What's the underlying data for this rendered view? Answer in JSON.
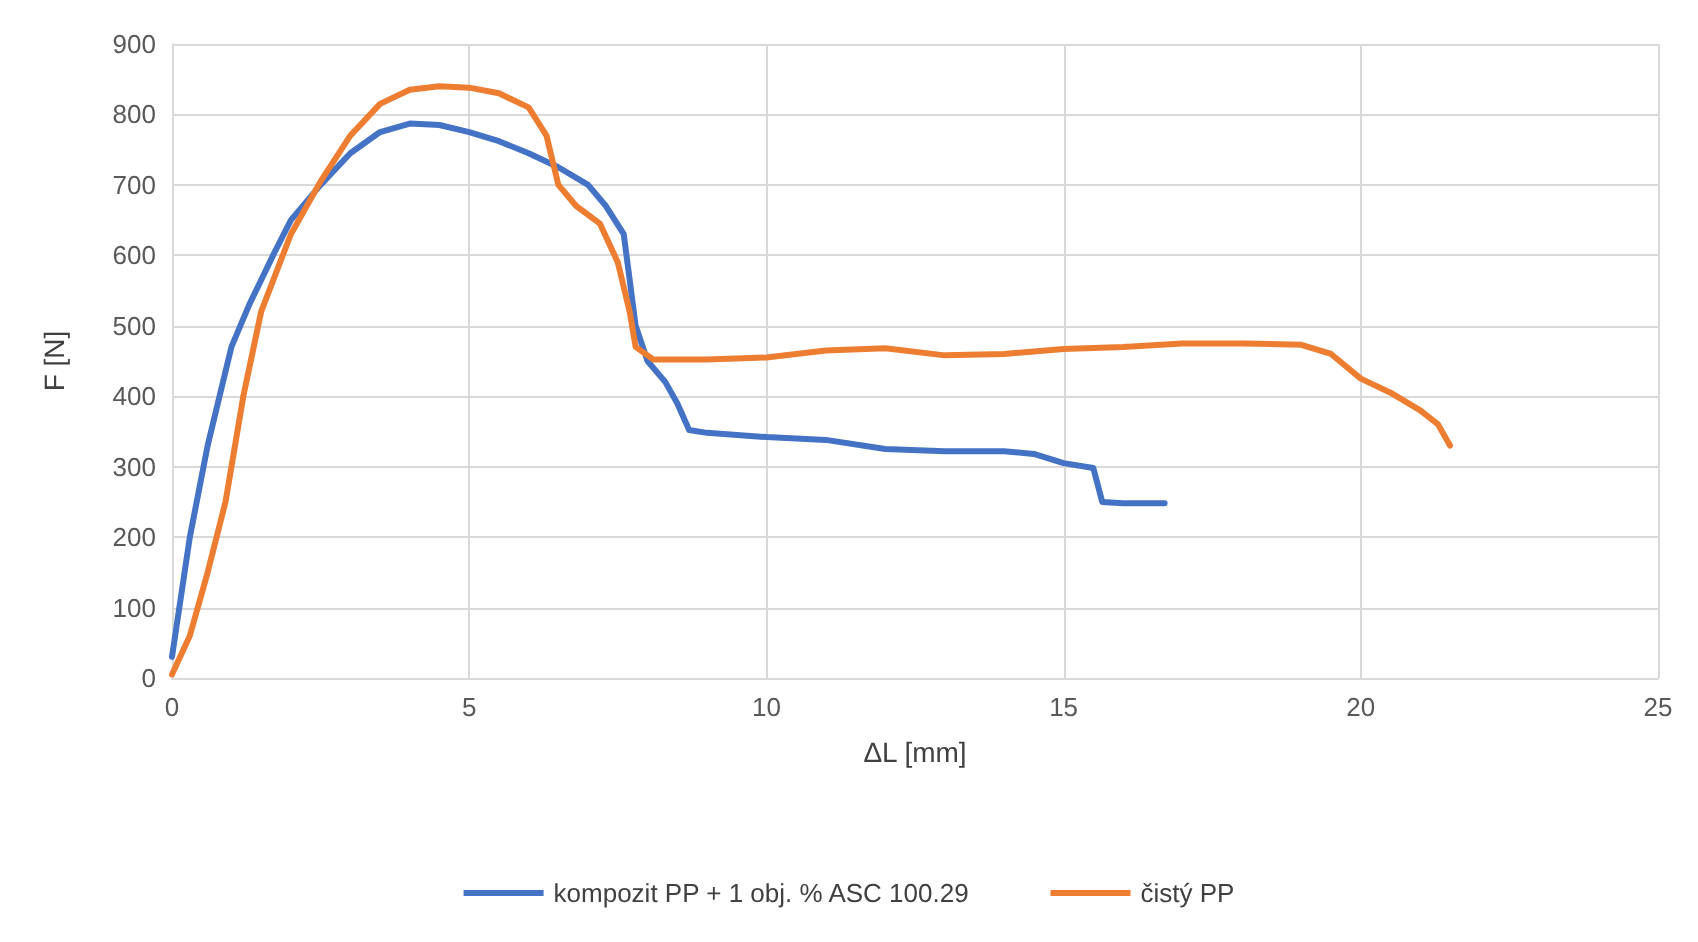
{
  "chart_data": {
    "type": "line",
    "xlabel": "ΔL [mm]",
    "ylabel": "F [N]",
    "xlim": [
      0,
      25
    ],
    "xticks": [
      0,
      5,
      10,
      15,
      20,
      25
    ],
    "ylim": [
      0,
      900
    ],
    "yticks": [
      0,
      100,
      200,
      300,
      400,
      500,
      600,
      700,
      800,
      900
    ],
    "grid": true,
    "legend": "bottom",
    "marker": "none",
    "line_style": "solid",
    "series": [
      {
        "name": "kompozit PP + 1 obj. % ASC 100.29",
        "color": "#4472c4",
        "x": [
          0,
          0.3,
          0.6,
          1,
          1.3,
          1.7,
          2,
          2.5,
          3,
          3.5,
          4,
          4.5,
          5,
          5.5,
          6,
          6.5,
          7,
          7.3,
          7.6,
          7.8,
          8,
          8.3,
          8.5,
          8.7,
          9,
          10,
          11,
          12,
          13,
          14,
          14.5,
          15,
          15.5,
          15.65,
          16,
          16.7
        ],
        "values": [
          30,
          200,
          330,
          470,
          530,
          600,
          650,
          700,
          745,
          775,
          787,
          785,
          775,
          762,
          745,
          725,
          700,
          670,
          630,
          500,
          450,
          420,
          390,
          352,
          348,
          342,
          338,
          325,
          322,
          322,
          318,
          305,
          298,
          250,
          248,
          248
        ]
      },
      {
        "name": "čistý PP",
        "color": "#ed7d31",
        "x": [
          0,
          0.3,
          0.6,
          0.9,
          1.2,
          1.5,
          2,
          2.5,
          3,
          3.5,
          4,
          4.5,
          5,
          5.5,
          6,
          6.3,
          6.5,
          6.8,
          7.2,
          7.5,
          7.7,
          7.8,
          8.1,
          9,
          10,
          11,
          12,
          13,
          14,
          15,
          16,
          17,
          18,
          19,
          19.5,
          20,
          20.5,
          21,
          21.3,
          21.5
        ],
        "values": [
          5,
          60,
          150,
          250,
          400,
          520,
          630,
          705,
          770,
          815,
          835,
          840,
          838,
          830,
          810,
          770,
          700,
          670,
          645,
          590,
          520,
          470,
          452,
          452,
          455,
          465,
          468,
          458,
          460,
          467,
          470,
          475,
          475,
          473,
          460,
          425,
          405,
          380,
          360,
          330
        ]
      }
    ]
  }
}
